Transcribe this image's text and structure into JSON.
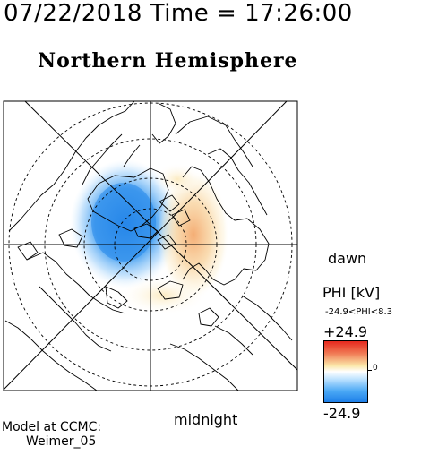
{
  "header": {
    "timestamp": "07/22/2018 Time = 17:26:00",
    "hemisphere": "Northern Hemisphere"
  },
  "map": {
    "dawn_label": "dawn",
    "midnight_label": "midnight",
    "projection": "polar stereographic, north pole centered",
    "latitude_circles_dashed": true
  },
  "colorbar": {
    "title": "PHI [kV]",
    "range_text": "-24.9<PHI<8.3",
    "max_label": "+24.9",
    "min_label": "-24.9",
    "zero_label": "0",
    "colors": {
      "high": "#e6281e",
      "mid": "#ffffff",
      "low": "#1e7fe8"
    }
  },
  "credits": {
    "line1": "Model at CCMC:",
    "line2": "Weimer_05"
  }
}
